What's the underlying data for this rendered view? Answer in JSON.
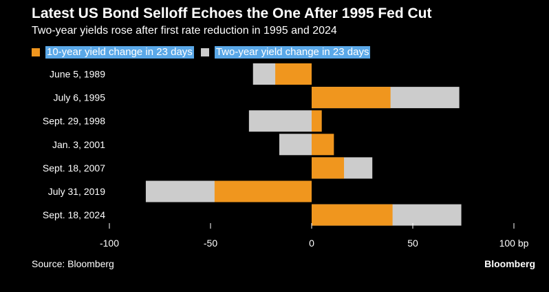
{
  "title": "Latest US Bond Selloff Echoes the One After 1995 Fed Cut",
  "subtitle": "Two-year yields rose after first rate reduction in 1995 and 2024",
  "source": "Source: Bloomberg",
  "brand": "Bloomberg",
  "colors": {
    "ten_year": "#f0961e",
    "two_year": "#cccccc",
    "background": "#000000",
    "legend_highlight": "#5aa8e8"
  },
  "chart_data": {
    "type": "bar",
    "orientation": "horizontal",
    "overlay": true,
    "categories": [
      "June 5, 1989",
      "July 6, 1995",
      "Sept. 29, 1998",
      "Jan. 3, 2001",
      "Sept. 18, 2007",
      "July 31, 2019",
      "Sept. 18, 2024"
    ],
    "series": [
      {
        "name": "10-year yield change in 23 days",
        "values": [
          -18,
          39,
          5,
          11,
          16,
          -48,
          40
        ]
      },
      {
        "name": "Two-year yield change in 23 days",
        "values": [
          -29,
          73,
          -31,
          -16,
          30,
          -82,
          74
        ]
      }
    ],
    "xlim": [
      -100,
      100
    ],
    "xticks": [
      -100,
      -50,
      0,
      50,
      100
    ],
    "xtick_labels": [
      "-100",
      "-50",
      "0",
      "50",
      "100 bp"
    ],
    "xlabel": "",
    "ylabel": "",
    "grid": false,
    "legend_position": "top-left"
  }
}
